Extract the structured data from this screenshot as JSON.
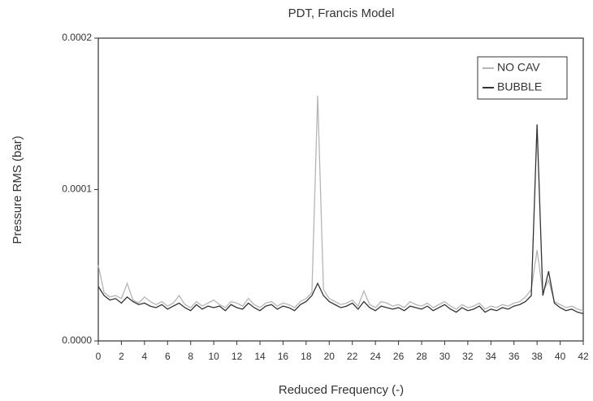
{
  "chart_data": {
    "type": "line",
    "title": "PDT, Francis Model",
    "xlabel": "Reduced Frequency (-)",
    "ylabel": "Pressure RMS (bar)",
    "x": [
      0,
      0.5,
      1,
      1.5,
      2,
      2.5,
      3,
      3.5,
      4,
      4.5,
      5,
      5.5,
      6,
      6.5,
      7,
      7.5,
      8,
      8.5,
      9,
      9.5,
      10,
      10.5,
      11,
      11.5,
      12,
      12.5,
      13,
      13.5,
      14,
      14.5,
      15,
      15.5,
      16,
      16.5,
      17,
      17.5,
      18,
      18.5,
      19,
      19.5,
      20,
      20.5,
      21,
      21.5,
      22,
      22.5,
      23,
      23.5,
      24,
      24.5,
      25,
      25.5,
      26,
      26.5,
      27,
      27.5,
      28,
      28.5,
      29,
      29.5,
      30,
      30.5,
      31,
      31.5,
      32,
      32.5,
      33,
      33.5,
      34,
      34.5,
      35,
      35.5,
      36,
      36.5,
      37,
      37.5,
      38,
      38.5,
      39,
      39.5,
      40,
      40.5,
      41,
      41.5,
      42
    ],
    "series": [
      {
        "name": "NO CAV",
        "color": "#b5b5b5",
        "values": [
          5e-05,
          3.2e-05,
          2.9e-05,
          3e-05,
          2.8e-05,
          3.8e-05,
          2.7e-05,
          2.5e-05,
          2.9e-05,
          2.6e-05,
          2.4e-05,
          2.6e-05,
          2.3e-05,
          2.5e-05,
          3e-05,
          2.4e-05,
          2.2e-05,
          2.6e-05,
          2.3e-05,
          2.5e-05,
          2.7e-05,
          2.4e-05,
          2.2e-05,
          2.6e-05,
          2.5e-05,
          2.3e-05,
          2.8e-05,
          2.4e-05,
          2.2e-05,
          2.5e-05,
          2.6e-05,
          2.3e-05,
          2.5e-05,
          2.4e-05,
          2.2e-05,
          2.6e-05,
          2.8e-05,
          3.2e-05,
          0.000162,
          3.4e-05,
          2.8e-05,
          2.6e-05,
          2.4e-05,
          2.5e-05,
          2.7e-05,
          2.3e-05,
          3.3e-05,
          2.4e-05,
          2.2e-05,
          2.6e-05,
          2.5e-05,
          2.3e-05,
          2.4e-05,
          2.2e-05,
          2.6e-05,
          2.4e-05,
          2.3e-05,
          2.5e-05,
          2.2e-05,
          2.4e-05,
          2.6e-05,
          2.3e-05,
          2.1e-05,
          2.4e-05,
          2.2e-05,
          2.3e-05,
          2.5e-05,
          2.1e-05,
          2.3e-05,
          2.2e-05,
          2.4e-05,
          2.3e-05,
          2.5e-05,
          2.6e-05,
          2.9e-05,
          3.4e-05,
          6e-05,
          3.2e-05,
          4e-05,
          2.6e-05,
          2.4e-05,
          2.2e-05,
          2.3e-05,
          2.1e-05,
          2e-05
        ]
      },
      {
        "name": "BUBBLE",
        "color": "#333333",
        "values": [
          3.6e-05,
          3e-05,
          2.7e-05,
          2.8e-05,
          2.5e-05,
          2.9e-05,
          2.6e-05,
          2.4e-05,
          2.5e-05,
          2.3e-05,
          2.2e-05,
          2.4e-05,
          2.1e-05,
          2.3e-05,
          2.5e-05,
          2.2e-05,
          2e-05,
          2.4e-05,
          2.1e-05,
          2.3e-05,
          2.2e-05,
          2.3e-05,
          2e-05,
          2.4e-05,
          2.2e-05,
          2.1e-05,
          2.5e-05,
          2.2e-05,
          2e-05,
          2.3e-05,
          2.4e-05,
          2.1e-05,
          2.3e-05,
          2.2e-05,
          2e-05,
          2.4e-05,
          2.6e-05,
          3e-05,
          3.8e-05,
          3e-05,
          2.6e-05,
          2.4e-05,
          2.2e-05,
          2.3e-05,
          2.5e-05,
          2.1e-05,
          2.6e-05,
          2.2e-05,
          2e-05,
          2.3e-05,
          2.2e-05,
          2.1e-05,
          2.2e-05,
          2e-05,
          2.3e-05,
          2.2e-05,
          2.1e-05,
          2.3e-05,
          2e-05,
          2.2e-05,
          2.4e-05,
          2.1e-05,
          1.9e-05,
          2.2e-05,
          2e-05,
          2.1e-05,
          2.3e-05,
          1.9e-05,
          2.1e-05,
          2e-05,
          2.2e-05,
          2.1e-05,
          2.3e-05,
          2.4e-05,
          2.6e-05,
          3e-05,
          0.000143,
          3e-05,
          4.6e-05,
          2.5e-05,
          2.2e-05,
          2e-05,
          2.1e-05,
          1.9e-05,
          1.8e-05
        ]
      }
    ],
    "xlim": [
      0,
      42
    ],
    "xticks": [
      0,
      2,
      4,
      6,
      8,
      10,
      12,
      14,
      16,
      18,
      20,
      22,
      24,
      26,
      28,
      30,
      32,
      34,
      36,
      38,
      40,
      42
    ],
    "ylim": [
      0,
      0.0002
    ],
    "yticks": [
      {
        "value": 0,
        "label": "0.0000"
      },
      {
        "value": 0.0001,
        "label": "0.0001"
      },
      {
        "value": 0.0002,
        "label": "0.0002"
      }
    ],
    "legend": "upper right"
  }
}
